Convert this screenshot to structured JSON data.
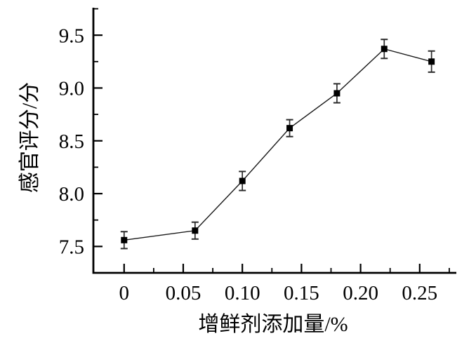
{
  "page": {
    "background": "#ffffff"
  },
  "chart_data": {
    "type": "line",
    "title": "",
    "xlabel": "增鲜剂添加量/%",
    "ylabel": "感官评分/分",
    "x": [
      0,
      0.06,
      0.1,
      0.14,
      0.18,
      0.22,
      0.26
    ],
    "y": [
      7.56,
      7.65,
      8.12,
      8.62,
      8.95,
      9.37,
      9.25
    ],
    "y_err": [
      0.08,
      0.08,
      0.09,
      0.08,
      0.09,
      0.09,
      0.1
    ],
    "marker": "filled-square",
    "grid": false,
    "xlim": [
      -0.026,
      0.281
    ],
    "ylim": [
      7.25,
      9.76
    ],
    "x_major_ticks": {
      "values": [
        0,
        0.05,
        0.1,
        0.15,
        0.2,
        0.25
      ],
      "labels": [
        "0",
        "0.05",
        "0.10",
        "0.15",
        "0.20",
        "0.25"
      ]
    },
    "x_minor_ticks": [
      0.025,
      0.075,
      0.125,
      0.175,
      0.225,
      0.275
    ],
    "y_major_ticks": {
      "values": [
        7.5,
        8.0,
        8.5,
        9.0,
        9.5
      ],
      "labels": [
        "7.5",
        "8.0",
        "8.5",
        "9.0",
        "9.5"
      ]
    },
    "y_minor_ticks": [
      7.75,
      8.25,
      8.75,
      9.25,
      9.75
    ],
    "colors": {
      "line": "#1a1a1a",
      "marker": "#000000",
      "error_bar": "#2b2b2b",
      "axis": "#000000",
      "text": "#000000",
      "background": "#ffffff"
    }
  }
}
